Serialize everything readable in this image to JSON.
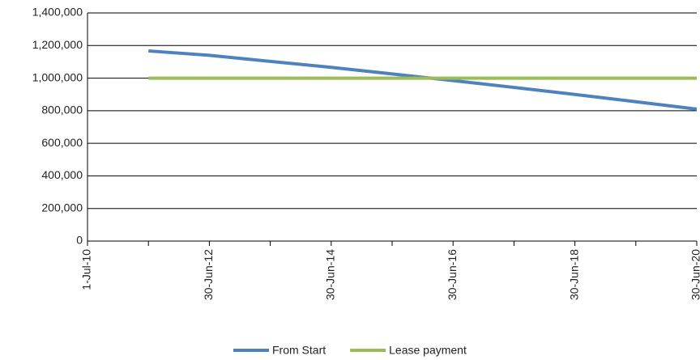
{
  "chart_data": {
    "type": "line",
    "categories": [
      "1-Jul-10",
      null,
      "30-Jun-12",
      null,
      "30-Jun-14",
      null,
      "30-Jun-16",
      null,
      "30-Jun-18",
      null,
      "30-Jun-20"
    ],
    "series": [
      {
        "name": "From Start",
        "color": "#4f81bd",
        "values": [
          null,
          1167000,
          1140000,
          1103000,
          1066000,
          1026000,
          985000,
          943000,
          900000,
          855000,
          810000
        ]
      },
      {
        "name": "Lease payment",
        "color": "#9bbb59",
        "values": [
          null,
          1000000,
          1000000,
          1000000,
          1000000,
          1000000,
          1000000,
          1000000,
          1000000,
          1000000,
          1000000
        ]
      }
    ],
    "ylim": [
      0,
      1400000
    ],
    "yticks": [
      0,
      {
        "value": 200000,
        "label": "200,000"
      },
      {
        "value": 400000,
        "label": "400,000"
      },
      {
        "value": 600000,
        "label": "600,000"
      },
      {
        "value": 800000,
        "label": "800,000"
      },
      {
        "value": 1000000,
        "label": "1,000,000"
      },
      {
        "value": 1200000,
        "label": "1,200,000"
      },
      {
        "value": 1400000,
        "label": "1,400,000"
      }
    ],
    "grid": true,
    "legend": "bottom"
  }
}
